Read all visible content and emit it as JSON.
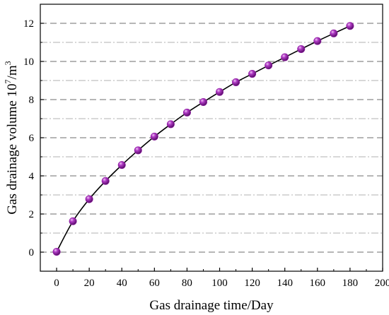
{
  "chart_data": {
    "type": "line",
    "title": "",
    "xlabel": "Gas drainage time/Day",
    "ylabel_main": "Gas drainage volume 10",
    "ylabel_sup1": "7",
    "ylabel_mid": "/m",
    "ylabel_sup2": "3",
    "xlim": [
      -10,
      200
    ],
    "ylim": [
      -1,
      13
    ],
    "xticks": [
      0,
      20,
      40,
      60,
      80,
      100,
      120,
      140,
      160,
      180,
      200
    ],
    "yticks": [
      0,
      2,
      4,
      6,
      8,
      10,
      12
    ],
    "major_grid": "dashed",
    "minor_grid": "dash-dot",
    "series": [
      {
        "x": [
          0,
          10,
          20,
          30,
          40,
          50,
          60,
          70,
          80,
          90,
          100,
          110,
          120,
          130,
          140,
          150,
          160,
          170,
          180
        ],
        "y": [
          0.02,
          1.62,
          2.78,
          3.73,
          4.57,
          5.34,
          6.06,
          6.71,
          7.32,
          7.87,
          8.4,
          8.91,
          9.35,
          9.79,
          10.22,
          10.65,
          11.07,
          11.47,
          11.86
        ],
        "line_color": "#000000",
        "marker_color": "#8b1a9e"
      }
    ]
  }
}
